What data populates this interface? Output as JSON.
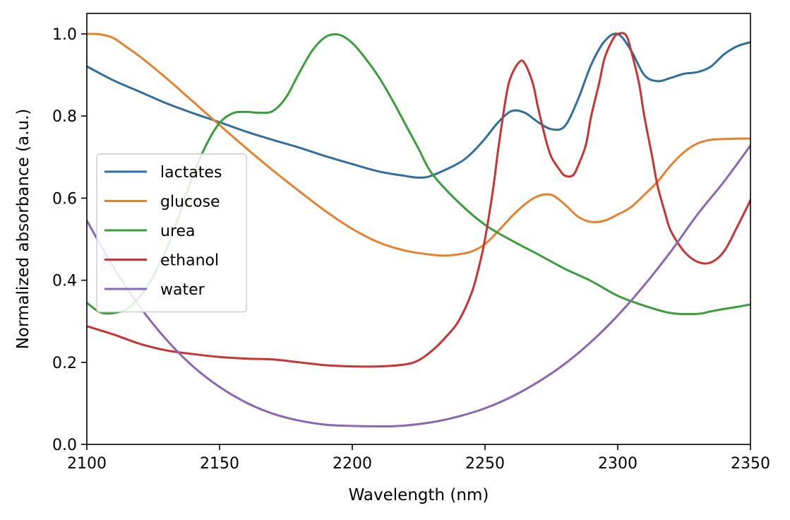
{
  "chart_data": {
    "type": "line",
    "title": "",
    "xlabel": "Wavelength (nm)",
    "ylabel": "Normalized absorbance (a.u.)",
    "xlim": [
      2100,
      2350
    ],
    "ylim": [
      0.0,
      1.05
    ],
    "xticks": [
      2100,
      2150,
      2200,
      2250,
      2300,
      2350
    ],
    "xtick_labels": [
      "2100",
      "2150",
      "2200",
      "2250",
      "2300",
      "2350"
    ],
    "yticks": [
      0.0,
      0.2,
      0.4,
      0.6,
      0.8,
      1.0
    ],
    "ytick_labels": [
      "0.0",
      "0.2",
      "0.4",
      "0.6",
      "0.8",
      "1.0"
    ],
    "grid": false,
    "legend_position": "center-left",
    "series": [
      {
        "name": "lactates",
        "color": "#2f6f9f",
        "x": [
          2100,
          2110,
          2120,
          2130,
          2140,
          2150,
          2160,
          2170,
          2180,
          2190,
          2200,
          2210,
          2220,
          2225,
          2230,
          2240,
          2245,
          2250,
          2255,
          2260,
          2265,
          2270,
          2275,
          2280,
          2285,
          2290,
          2295,
          2300,
          2305,
          2310,
          2315,
          2320,
          2325,
          2330,
          2335,
          2340,
          2345,
          2350
        ],
        "y": [
          0.921,
          0.887,
          0.859,
          0.831,
          0.807,
          0.785,
          0.762,
          0.742,
          0.723,
          0.702,
          0.683,
          0.665,
          0.654,
          0.65,
          0.655,
          0.685,
          0.71,
          0.745,
          0.785,
          0.812,
          0.808,
          0.785,
          0.768,
          0.775,
          0.84,
          0.925,
          0.982,
          1.0,
          0.96,
          0.9,
          0.885,
          0.893,
          0.903,
          0.907,
          0.92,
          0.95,
          0.97,
          0.98
        ]
      },
      {
        "name": "glucose",
        "color": "#e8812d",
        "x": [
          2100,
          2105,
          2110,
          2115,
          2120,
          2130,
          2140,
          2150,
          2160,
          2170,
          2180,
          2190,
          2200,
          2210,
          2220,
          2230,
          2235,
          2240,
          2245,
          2250,
          2255,
          2260,
          2265,
          2270,
          2275,
          2280,
          2285,
          2290,
          2295,
          2300,
          2305,
          2310,
          2315,
          2320,
          2325,
          2330,
          2335,
          2340,
          2345,
          2350
        ],
        "y": [
          1.0,
          0.999,
          0.99,
          0.968,
          0.945,
          0.892,
          0.835,
          0.778,
          0.722,
          0.668,
          0.617,
          0.568,
          0.525,
          0.492,
          0.472,
          0.462,
          0.46,
          0.463,
          0.47,
          0.488,
          0.52,
          0.555,
          0.585,
          0.605,
          0.608,
          0.585,
          0.555,
          0.542,
          0.545,
          0.56,
          0.578,
          0.608,
          0.64,
          0.68,
          0.712,
          0.733,
          0.742,
          0.744,
          0.745,
          0.745
        ]
      },
      {
        "name": "urea",
        "color": "#3a9e3a",
        "x": [
          2100,
          2105,
          2110,
          2115,
          2120,
          2125,
          2130,
          2135,
          2140,
          2145,
          2150,
          2155,
          2160,
          2165,
          2170,
          2175,
          2180,
          2185,
          2190,
          2195,
          2200,
          2205,
          2210,
          2215,
          2220,
          2225,
          2230,
          2240,
          2250,
          2260,
          2270,
          2280,
          2290,
          2300,
          2310,
          2320,
          2330,
          2335,
          2340,
          2345,
          2350
        ],
        "y": [
          0.345,
          0.322,
          0.32,
          0.33,
          0.36,
          0.41,
          0.475,
          0.562,
          0.655,
          0.73,
          0.783,
          0.807,
          0.81,
          0.808,
          0.812,
          0.845,
          0.905,
          0.96,
          0.993,
          0.998,
          0.978,
          0.94,
          0.895,
          0.84,
          0.78,
          0.72,
          0.66,
          0.59,
          0.535,
          0.497,
          0.463,
          0.428,
          0.398,
          0.362,
          0.338,
          0.32,
          0.318,
          0.324,
          0.33,
          0.335,
          0.341
        ]
      },
      {
        "name": "ethanol",
        "color": "#c83333",
        "x": [
          2100,
          2110,
          2120,
          2130,
          2140,
          2150,
          2160,
          2170,
          2180,
          2190,
          2200,
          2210,
          2220,
          2225,
          2230,
          2235,
          2240,
          2245,
          2248,
          2250,
          2253,
          2255,
          2258,
          2260,
          2263,
          2265,
          2268,
          2270,
          2273,
          2275,
          2278,
          2280,
          2283,
          2285,
          2288,
          2290,
          2293,
          2295,
          2298,
          2300,
          2303,
          2305,
          2308,
          2310,
          2313,
          2315,
          2318,
          2320,
          2325,
          2330,
          2335,
          2340,
          2345,
          2350
        ],
        "y": [
          0.288,
          0.268,
          0.245,
          0.229,
          0.22,
          0.213,
          0.209,
          0.207,
          0.2,
          0.193,
          0.19,
          0.19,
          0.195,
          0.205,
          0.228,
          0.26,
          0.3,
          0.37,
          0.44,
          0.5,
          0.62,
          0.72,
          0.85,
          0.9,
          0.932,
          0.928,
          0.88,
          0.82,
          0.74,
          0.7,
          0.67,
          0.655,
          0.655,
          0.678,
          0.73,
          0.8,
          0.88,
          0.94,
          0.985,
          1.0,
          0.998,
          0.96,
          0.88,
          0.8,
          0.7,
          0.63,
          0.56,
          0.52,
          0.47,
          0.445,
          0.443,
          0.47,
          0.53,
          0.595
        ]
      },
      {
        "name": "water",
        "color": "#8a67b5",
        "x": [
          2100,
          2110,
          2120,
          2130,
          2140,
          2150,
          2160,
          2170,
          2180,
          2190,
          2200,
          2210,
          2214,
          2220,
          2230,
          2240,
          2250,
          2260,
          2270,
          2280,
          2290,
          2300,
          2310,
          2320,
          2330,
          2340,
          2350
        ],
        "y": [
          0.545,
          0.432,
          0.335,
          0.255,
          0.19,
          0.14,
          0.102,
          0.075,
          0.058,
          0.048,
          0.045,
          0.044,
          0.044,
          0.046,
          0.054,
          0.068,
          0.088,
          0.116,
          0.152,
          0.196,
          0.25,
          0.314,
          0.388,
          0.47,
          0.56,
          0.64,
          0.728
        ]
      }
    ]
  }
}
